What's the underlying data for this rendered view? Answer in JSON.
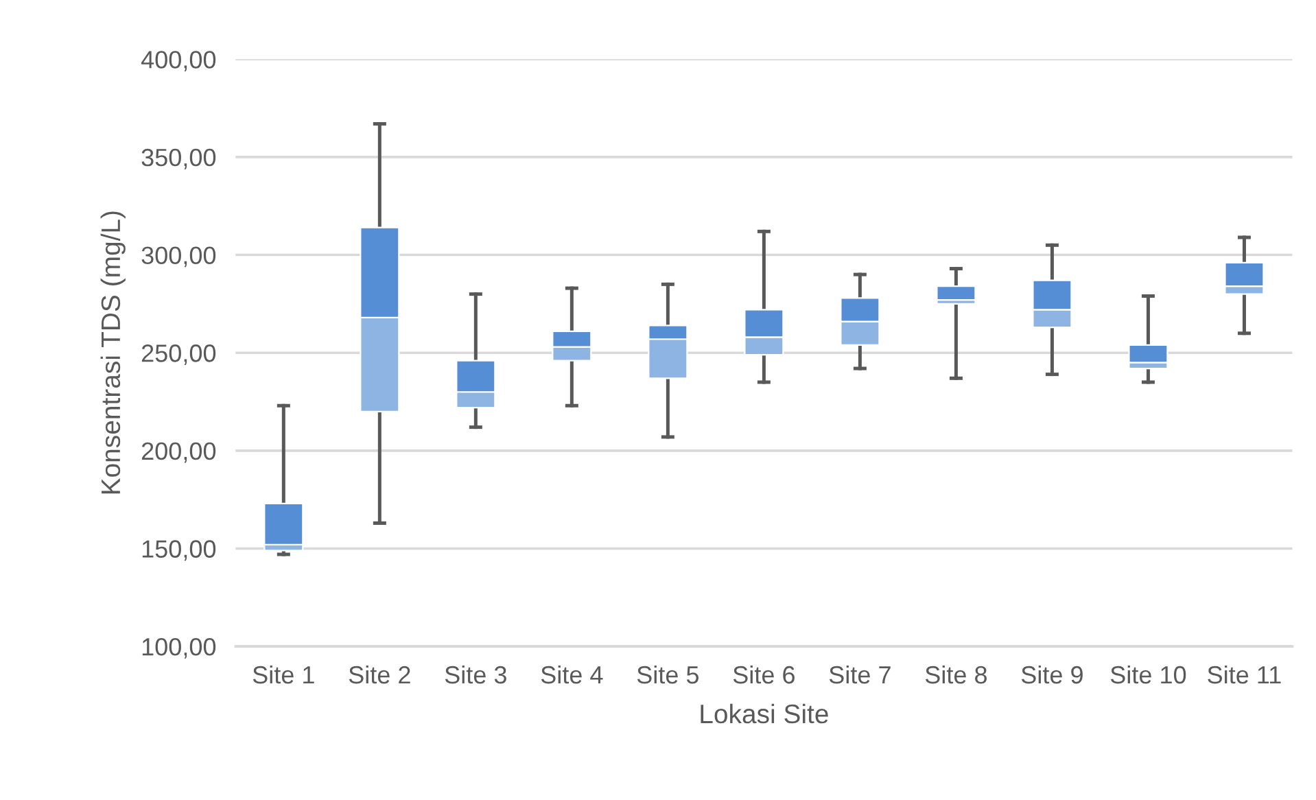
{
  "chart_data": {
    "type": "box",
    "xlabel": "Lokasi Site",
    "ylabel": "Konsentrasi TDS (mg/L)",
    "categories": [
      "Site 1",
      "Site 2",
      "Site 3",
      "Site 4",
      "Site 5",
      "Site 6",
      "Site 7",
      "Site 8",
      "Site 9",
      "Site 10",
      "Site 11"
    ],
    "series": [
      {
        "color": "#558ed5",
        "colors": [
          "#8eb4e3",
          "#8eb4e3",
          "#8eb4e3",
          "#8eb4e3",
          "#8eb4e3",
          "#8eb4e3",
          "#8eb4e3",
          "#8eb4e3",
          "#8eb4e3",
          "#8eb4e3",
          "#8eb4e3"
        ],
        "boxes": [
          {
            "low": 147,
            "q1": 149,
            "median": 152,
            "q3": 173,
            "high": 223
          },
          {
            "low": 163,
            "q1": 220,
            "median": 268,
            "q3": 314,
            "high": 367
          },
          {
            "low": 212,
            "q1": 222,
            "median": 230,
            "q3": 246,
            "high": 280
          },
          {
            "low": 223,
            "q1": 246,
            "median": 253,
            "q3": 261,
            "high": 283
          },
          {
            "low": 207,
            "q1": 237,
            "median": 257,
            "q3": 264,
            "high": 285
          },
          {
            "low": 235,
            "q1": 249,
            "median": 258,
            "q3": 272,
            "high": 312
          },
          {
            "low": 242,
            "q1": 254,
            "median": 266,
            "q3": 278,
            "high": 290
          },
          {
            "low": 237,
            "q1": 275,
            "median": 277,
            "q3": 284,
            "high": 293
          },
          {
            "low": 239,
            "q1": 263,
            "median": 272,
            "q3": 287,
            "high": 305
          },
          {
            "low": 235,
            "q1": 242,
            "median": 245,
            "q3": 254,
            "high": 279
          },
          {
            "low": 260,
            "q1": 280,
            "median": 284,
            "q3": 296,
            "high": 309
          }
        ]
      }
    ],
    "ylim": [
      100,
      400
    ],
    "yticks": [
      {
        "value": 100,
        "label": "100,00"
      },
      {
        "value": 150,
        "label": "150,00"
      },
      {
        "value": 200,
        "label": "200,00"
      },
      {
        "value": 250,
        "label": "250,00"
      },
      {
        "value": 300,
        "label": "300,00"
      },
      {
        "value": 350,
        "label": "350,00"
      },
      {
        "value": 400,
        "label": "400,00"
      }
    ],
    "grid": "y",
    "legend": false
  }
}
